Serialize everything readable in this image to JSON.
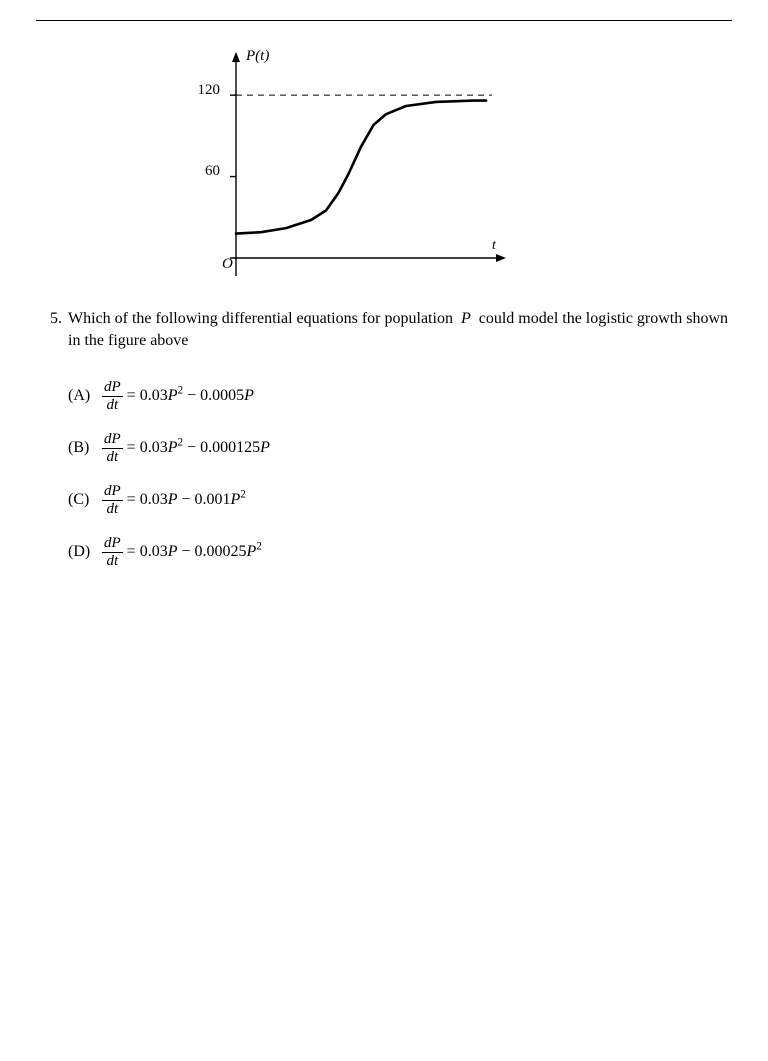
{
  "chart": {
    "type": "line",
    "y_axis_label": "P(t)",
    "x_axis_label": "t",
    "origin_label": "O",
    "y_ticks": [
      {
        "value": 60,
        "label": "60"
      },
      {
        "value": 120,
        "label": "120"
      }
    ],
    "asymptote_y": 120,
    "xlim": [
      0,
      10
    ],
    "ylim": [
      0,
      140
    ],
    "curve_points": [
      [
        0,
        18
      ],
      [
        1,
        19
      ],
      [
        2,
        22
      ],
      [
        3,
        28
      ],
      [
        3.6,
        35
      ],
      [
        4.1,
        48
      ],
      [
        4.5,
        62
      ],
      [
        5,
        82
      ],
      [
        5.5,
        98
      ],
      [
        6,
        106
      ],
      [
        6.8,
        112
      ],
      [
        8,
        115
      ],
      [
        9.5,
        116
      ],
      [
        10,
        116
      ]
    ],
    "curve_color": "#000000",
    "curve_width": 2.6,
    "axis_color": "#000000",
    "axis_width": 1.4,
    "dash_color": "#000000",
    "background_color": "#ffffff",
    "tick_font_size": 15,
    "label_font_size": 15
  },
  "question": {
    "number": "5.",
    "text_pre": "Which of the following differential equations for population ",
    "var": "P",
    "text_post": " could model the logistic growth shown in the figure above"
  },
  "choices": {
    "frac_num": "dP",
    "frac_den": "dt",
    "items": [
      {
        "label": "(A)",
        "coeff1": "0.03",
        "term1_sup": "2",
        "sign": "−",
        "coeff2": "0.0005",
        "term2_sup": ""
      },
      {
        "label": "(B)",
        "coeff1": "0.03",
        "term1_sup": "2",
        "sign": "−",
        "coeff2": "0.000125",
        "term2_sup": ""
      },
      {
        "label": "(C)",
        "coeff1": "0.03",
        "term1_sup": "",
        "sign": "−",
        "coeff2": "0.001",
        "term2_sup": "2"
      },
      {
        "label": "(D)",
        "coeff1": "0.03",
        "term1_sup": "",
        "sign": "−",
        "coeff2": "0.00025",
        "term2_sup": "2"
      }
    ]
  }
}
